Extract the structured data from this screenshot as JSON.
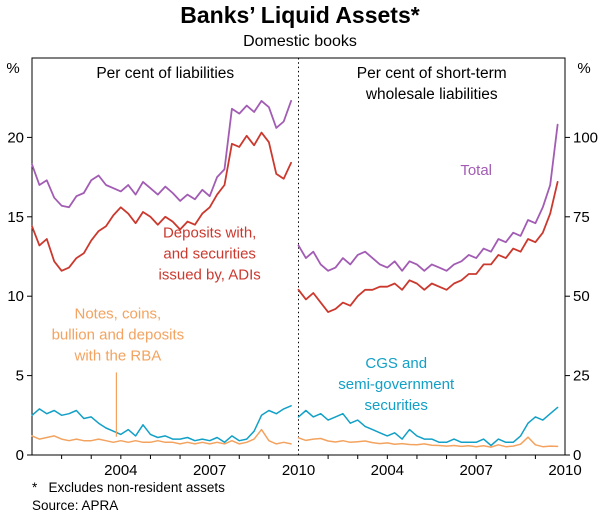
{
  "title": "Banks’ Liquid Assets*",
  "subtitle": "Domestic books",
  "footnote": "*   Excludes non-resident assets",
  "source": "Source: APRA",
  "chart_data": {
    "type": "line",
    "xlim": [
      2001,
      2010
    ],
    "xticks": [
      2004,
      2007,
      2010
    ],
    "grid": false,
    "divider": "dotted-vertical",
    "panels": [
      {
        "title_lines": [
          "Per cent of liabilities"
        ],
        "axis_side": "left",
        "unit": "%",
        "ylim": [
          0,
          25
        ],
        "yticks": [
          0,
          5,
          10,
          15,
          20
        ],
        "x": [
          2001,
          2001.25,
          2001.5,
          2001.75,
          2002,
          2002.25,
          2002.5,
          2002.75,
          2003,
          2003.25,
          2003.5,
          2003.75,
          2004,
          2004.25,
          2004.5,
          2004.75,
          2005,
          2005.25,
          2005.5,
          2005.75,
          2006,
          2006.25,
          2006.5,
          2006.75,
          2007,
          2007.25,
          2007.5,
          2007.75,
          2008,
          2008.25,
          2008.5,
          2008.75,
          2009,
          2009.25,
          2009.5,
          2009.75
        ],
        "series": [
          {
            "id": "rba-notes",
            "name": "Notes, coins, bullion and deposits with the RBA",
            "color": "#f3a35f",
            "width": 1.5,
            "values": [
              1.2,
              1.0,
              1.1,
              1.2,
              1.0,
              0.9,
              1.0,
              0.9,
              0.9,
              1.0,
              0.9,
              0.8,
              0.9,
              0.8,
              0.9,
              0.8,
              0.8,
              0.9,
              0.8,
              0.8,
              0.7,
              0.8,
              0.7,
              0.8,
              0.7,
              0.8,
              0.7,
              0.9,
              0.7,
              0.8,
              1.0,
              1.6,
              0.9,
              0.7,
              0.8,
              0.7
            ]
          },
          {
            "id": "cgs",
            "name": "CGS and semi-government securities",
            "color": "#12a0c6",
            "width": 1.5,
            "values": [
              2.5,
              2.9,
              2.6,
              2.8,
              2.5,
              2.6,
              2.8,
              2.3,
              2.4,
              2.0,
              1.7,
              1.5,
              1.3,
              1.6,
              1.2,
              1.9,
              1.3,
              1.1,
              1.2,
              1.0,
              1.0,
              1.1,
              0.9,
              1.0,
              0.9,
              1.1,
              0.8,
              1.2,
              0.9,
              1.0,
              1.5,
              2.5,
              2.8,
              2.6,
              2.9,
              3.1
            ]
          },
          {
            "id": "adi",
            "name": "Deposits with, and securities issued by, ADIs",
            "color": "#cb392e",
            "width": 1.8,
            "values": [
              14.4,
              13.2,
              13.6,
              12.2,
              11.6,
              11.8,
              12.4,
              12.7,
              13.5,
              14.1,
              14.4,
              15.1,
              15.6,
              15.2,
              14.6,
              15.3,
              15.0,
              14.5,
              15.0,
              14.7,
              14.2,
              14.7,
              14.5,
              15.2,
              15.6,
              16.4,
              17.0,
              19.6,
              19.4,
              20.1,
              19.5,
              20.3,
              19.7,
              17.7,
              17.4,
              18.4
            ]
          },
          {
            "id": "total",
            "name": "Total",
            "color": "#a25cb3",
            "width": 1.8,
            "values": [
              18.3,
              17.0,
              17.3,
              16.2,
              15.7,
              15.6,
              16.3,
              16.5,
              17.3,
              17.6,
              17.0,
              16.8,
              16.6,
              17.0,
              16.4,
              17.2,
              16.8,
              16.4,
              16.9,
              16.5,
              16.0,
              16.4,
              16.1,
              16.7,
              16.3,
              17.5,
              18.0,
              21.8,
              21.5,
              22.0,
              21.6,
              22.3,
              21.9,
              20.6,
              21.0,
              22.3
            ]
          }
        ]
      },
      {
        "title_lines": [
          "Per cent of short-term",
          "wholesale liabilities"
        ],
        "axis_side": "right",
        "unit": "%",
        "ylim": [
          0,
          125
        ],
        "yticks": [
          0,
          25,
          50,
          75,
          100
        ],
        "x": [
          2001,
          2001.25,
          2001.5,
          2001.75,
          2002,
          2002.25,
          2002.5,
          2002.75,
          2003,
          2003.25,
          2003.5,
          2003.75,
          2004,
          2004.25,
          2004.5,
          2004.75,
          2005,
          2005.25,
          2005.5,
          2005.75,
          2006,
          2006.25,
          2006.5,
          2006.75,
          2007,
          2007.25,
          2007.5,
          2007.75,
          2008,
          2008.25,
          2008.5,
          2008.75,
          2009,
          2009.25,
          2009.5,
          2009.75
        ],
        "series": [
          {
            "id": "rba-notes",
            "name": "Notes, coins, bullion and deposits with the RBA",
            "color": "#f3a35f",
            "width": 1.5,
            "values": [
              5.4,
              4.6,
              5.0,
              5.2,
              4.4,
              4.1,
              4.5,
              4.0,
              4.2,
              4.4,
              3.9,
              3.6,
              3.8,
              3.4,
              3.6,
              3.3,
              3.2,
              3.5,
              3.1,
              3.0,
              2.8,
              3.0,
              2.7,
              2.9,
              2.6,
              2.9,
              2.5,
              3.2,
              2.6,
              2.8,
              3.4,
              5.6,
              3.2,
              2.6,
              2.8,
              2.7
            ]
          },
          {
            "id": "cgs",
            "name": "CGS and semi-government securities",
            "color": "#12a0c6",
            "width": 1.5,
            "values": [
              12,
              14,
              12,
              13,
              11,
              12,
              13,
              10,
              11,
              9,
              8,
              7,
              6,
              7,
              5,
              8,
              6,
              5,
              5,
              4,
              4,
              5,
              4,
              4,
              4,
              5,
              3,
              5,
              4,
              4,
              6,
              10,
              12,
              11,
              13,
              15
            ]
          },
          {
            "id": "adi",
            "name": "Deposits with, and securities issued by, ADIs",
            "color": "#cb392e",
            "width": 1.8,
            "values": [
              52,
              49,
              51,
              48,
              45,
              46,
              48,
              47,
              50,
              52,
              52,
              53,
              53,
              54,
              52,
              55,
              54,
              52,
              54,
              53,
              52,
              54,
              55,
              57,
              57,
              60,
              60,
              63,
              62,
              65,
              64,
              68,
              67,
              70,
              76,
              86
            ]
          },
          {
            "id": "total",
            "name": "Total",
            "color": "#a25cb3",
            "width": 1.8,
            "values": [
              66,
              62,
              64,
              60,
              58,
              59,
              62,
              60,
              63,
              64,
              62,
              60,
              59,
              61,
              58,
              61,
              60,
              58,
              60,
              59,
              58,
              60,
              61,
              63,
              62,
              65,
              64,
              68,
              67,
              70,
              69,
              74,
              73,
              78,
              85,
              104
            ]
          }
        ]
      }
    ],
    "annotations": [
      {
        "id": "adi-label",
        "panel": 0,
        "x": 2007.0,
        "y": 13.7,
        "lines": [
          "Deposits with,",
          "and securities",
          "issued by, ADIs"
        ],
        "color": "#cb392e"
      },
      {
        "id": "rba-label",
        "panel": 0,
        "x": 2003.9,
        "y": 8.6,
        "lines": [
          "Notes, coins,",
          "bullion and deposits",
          "with the RBA"
        ],
        "color": "#f3a35f"
      },
      {
        "id": "rba-pointer",
        "panel": 0,
        "type": "line",
        "x1": 2003.85,
        "y1": 5.2,
        "x2": 2003.85,
        "y2": 1.15,
        "color": "#f3a35f"
      },
      {
        "id": "total-label",
        "panel": 1,
        "x": 2007.0,
        "y": 88.2,
        "lines": [
          "Total"
        ],
        "color": "#a25cb3"
      },
      {
        "id": "cgs-label",
        "panel": 1,
        "x": 2004.3,
        "y": 27.4,
        "lines": [
          "CGS and",
          "semi-government",
          "securities"
        ],
        "color": "#12a0c6"
      }
    ]
  }
}
